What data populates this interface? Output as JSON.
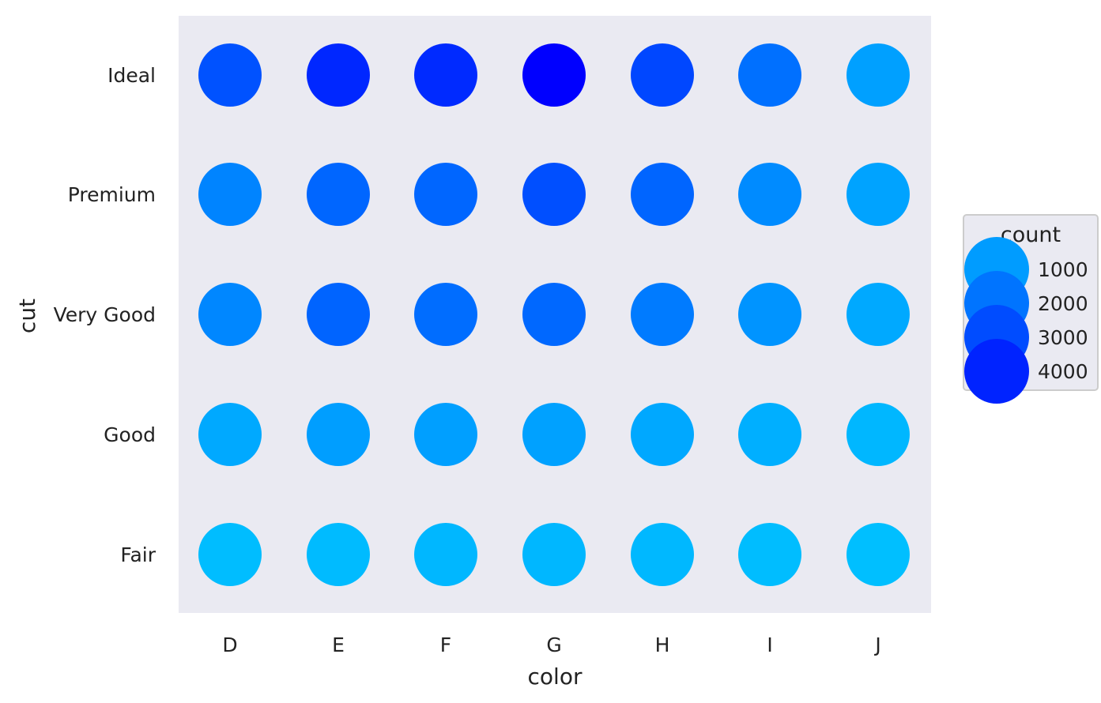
{
  "chart_data": {
    "type": "scatter",
    "xlabel": "color",
    "ylabel": "cut",
    "x_categories": [
      "D",
      "E",
      "F",
      "G",
      "H",
      "I",
      "J"
    ],
    "y_categories": [
      "Ideal",
      "Premium",
      "Very Good",
      "Good",
      "Fair"
    ],
    "points": [
      {
        "x": "D",
        "y": "Ideal",
        "count": 2834
      },
      {
        "x": "E",
        "y": "Ideal",
        "count": 3903
      },
      {
        "x": "F",
        "y": "Ideal",
        "count": 3826
      },
      {
        "x": "G",
        "y": "Ideal",
        "count": 4884
      },
      {
        "x": "H",
        "y": "Ideal",
        "count": 3115
      },
      {
        "x": "I",
        "y": "Ideal",
        "count": 2093
      },
      {
        "x": "J",
        "y": "Ideal",
        "count": 896
      },
      {
        "x": "D",
        "y": "Premium",
        "count": 1603
      },
      {
        "x": "E",
        "y": "Premium",
        "count": 2337
      },
      {
        "x": "F",
        "y": "Premium",
        "count": 2331
      },
      {
        "x": "G",
        "y": "Premium",
        "count": 2924
      },
      {
        "x": "H",
        "y": "Premium",
        "count": 2360
      },
      {
        "x": "I",
        "y": "Premium",
        "count": 1428
      },
      {
        "x": "J",
        "y": "Premium",
        "count": 808
      },
      {
        "x": "D",
        "y": "Very Good",
        "count": 1513
      },
      {
        "x": "E",
        "y": "Very Good",
        "count": 2400
      },
      {
        "x": "F",
        "y": "Very Good",
        "count": 2164
      },
      {
        "x": "G",
        "y": "Very Good",
        "count": 2299
      },
      {
        "x": "H",
        "y": "Very Good",
        "count": 1824
      },
      {
        "x": "I",
        "y": "Very Good",
        "count": 1204
      },
      {
        "x": "J",
        "y": "Very Good",
        "count": 678
      },
      {
        "x": "D",
        "y": "Good",
        "count": 662
      },
      {
        "x": "E",
        "y": "Good",
        "count": 933
      },
      {
        "x": "F",
        "y": "Good",
        "count": 909
      },
      {
        "x": "G",
        "y": "Good",
        "count": 871
      },
      {
        "x": "H",
        "y": "Good",
        "count": 702
      },
      {
        "x": "I",
        "y": "Good",
        "count": 522
      },
      {
        "x": "J",
        "y": "Good",
        "count": 307
      },
      {
        "x": "D",
        "y": "Fair",
        "count": 163
      },
      {
        "x": "E",
        "y": "Fair",
        "count": 224
      },
      {
        "x": "F",
        "y": "Fair",
        "count": 312
      },
      {
        "x": "G",
        "y": "Fair",
        "count": 314
      },
      {
        "x": "H",
        "y": "Fair",
        "count": 303
      },
      {
        "x": "I",
        "y": "Fair",
        "count": 175
      },
      {
        "x": "J",
        "y": "Fair",
        "count": 119
      }
    ],
    "color_scale": {
      "min_value": 119,
      "max_value": 4884,
      "low_color": "#00bfff",
      "high_color": "#0000ff"
    },
    "legend": {
      "title": "count",
      "placement": "right",
      "entries": [
        {
          "value": 1000,
          "label": "1000"
        },
        {
          "value": 2000,
          "label": "2000"
        },
        {
          "value": 3000,
          "label": "3000"
        },
        {
          "value": 4000,
          "label": "4000"
        }
      ]
    },
    "grid": false,
    "panel_background": "#eaeaf2"
  }
}
